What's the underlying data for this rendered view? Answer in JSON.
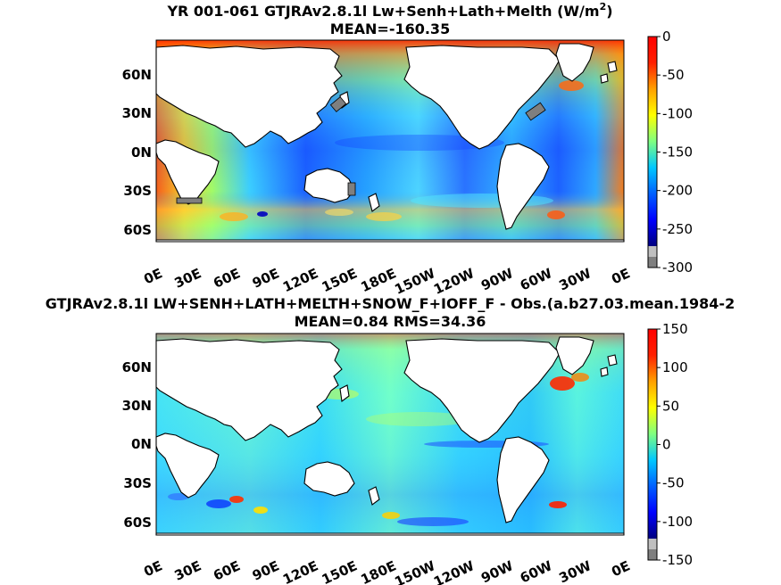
{
  "chart_data": [
    {
      "type": "heatmap",
      "title": "YR 001-061 GTJRAv2.8.1l Lw+Senh+Lath+Melth (W/m",
      "title_superscript": "2",
      "title_suffix": ")",
      "subtitle": "MEAN=-160.35",
      "x_ticks": [
        "0E",
        "30E",
        "60E",
        "90E",
        "120E",
        "150E",
        "180E",
        "150W",
        "120W",
        "90W",
        "60W",
        "30W",
        "0E"
      ],
      "y_ticks": [
        "60N",
        "30N",
        "0N",
        "30S",
        "60S"
      ],
      "colorbar": {
        "min": -300,
        "max": 0,
        "ticks": [
          "0",
          "-50",
          "-100",
          "-150",
          "-200",
          "-250",
          "-300"
        ]
      }
    },
    {
      "type": "heatmap",
      "title": "GTJRAv2.8.1l LW+SENH+LATH+MELTH+SNOW_F+IOFF_F - Obs.(a.b27.03.mean.1984-2",
      "subtitle": "MEAN=0.84 RMS=34.36",
      "x_ticks": [
        "0E",
        "30E",
        "60E",
        "90E",
        "120E",
        "150E",
        "180E",
        "150W",
        "120W",
        "90W",
        "60W",
        "30W",
        "0E"
      ],
      "y_ticks": [
        "60N",
        "30N",
        "0N",
        "30S",
        "60S"
      ],
      "colorbar": {
        "min": -150,
        "max": 150,
        "ticks": [
          "150",
          "100",
          "50",
          "0",
          "-50",
          "-100",
          "-150"
        ]
      }
    }
  ],
  "colors": {
    "jet": [
      "#00007f",
      "#0000ff",
      "#0080ff",
      "#00ffff",
      "#80ff80",
      "#ffff00",
      "#ff8000",
      "#ff0000",
      "#7f0000"
    ],
    "land": "#ffffff",
    "missing": "#7f7f7f"
  }
}
